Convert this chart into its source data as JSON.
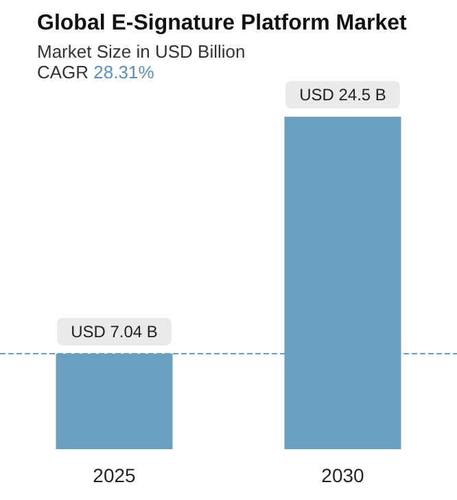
{
  "chart_data": {
    "type": "bar",
    "title": "Global E-Signature Platform Market",
    "subtitle": "Market Size in USD Billion",
    "annotations": [
      "CAGR 28.31%"
    ],
    "categories": [
      "2025",
      "2030"
    ],
    "series": [
      {
        "color": "#6a9fc0",
        "values": [
          7.04,
          24.5
        ],
        "value_labels": [
          "USD 7.04 B",
          "USD 24.5 B"
        ]
      }
    ],
    "ref_lines": [
      {
        "axis": "y",
        "value": 7.04,
        "color": "#6a9fc0",
        "line_style": "dashed"
      }
    ]
  }
}
